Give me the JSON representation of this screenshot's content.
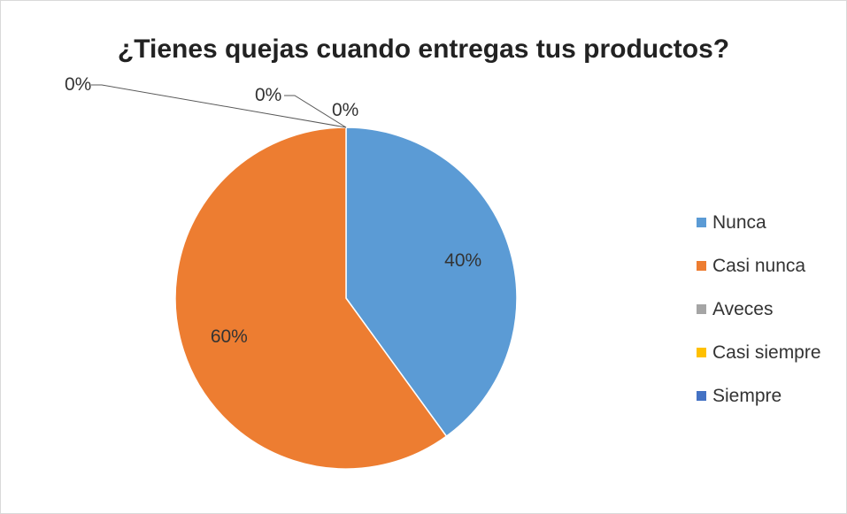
{
  "chart_data": {
    "type": "pie",
    "title": "¿Tienes quejas cuando entregas tus productos?",
    "categories": [
      "Nunca",
      "Casi nunca",
      "Aveces",
      "Casi siempre",
      "Siempre"
    ],
    "values": [
      40,
      60,
      0,
      0,
      0
    ],
    "data_labels": [
      "40%",
      "60%",
      "0%",
      "0%",
      "0%"
    ],
    "colors": [
      "#5b9bd5",
      "#ed7d31",
      "#a5a5a5",
      "#ffc000",
      "#4472c4"
    ],
    "legend_position": "right"
  }
}
